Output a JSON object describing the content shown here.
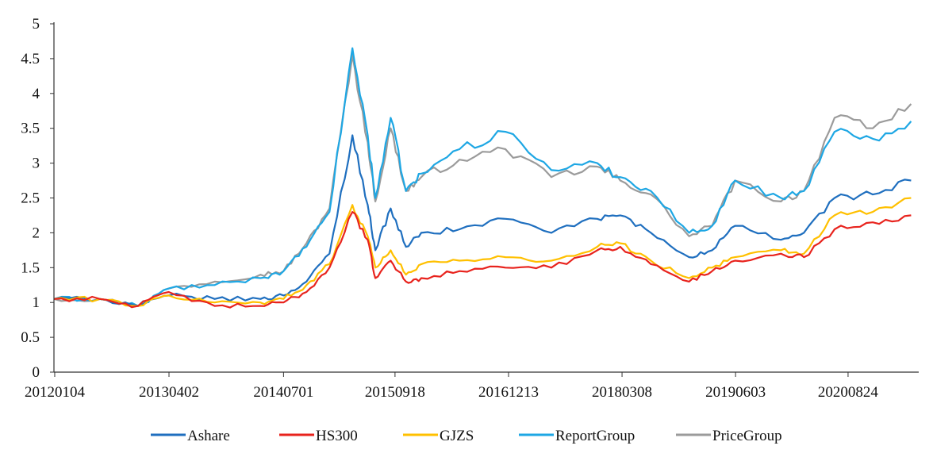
{
  "chart_data": {
    "type": "line",
    "title": "",
    "xlabel": "",
    "ylabel": "",
    "ylim": [
      0,
      5
    ],
    "yticks": [
      "0",
      "0.5",
      "1",
      "1.5",
      "2",
      "2.5",
      "3",
      "3.5",
      "4",
      "4.5",
      "5"
    ],
    "xticks": [
      "20120104",
      "20130402",
      "20140701",
      "20150918",
      "20161213",
      "20180308",
      "20190603",
      "20200824"
    ],
    "grid": false,
    "legend_position": "bottom",
    "x": [
      "2012-01",
      "2012-07",
      "2012-12",
      "2013-04",
      "2013-10",
      "2014-04",
      "2014-07",
      "2014-10",
      "2015-01",
      "2015-04",
      "2015-06",
      "2015-07",
      "2015-09",
      "2015-11",
      "2016-01",
      "2016-06",
      "2016-12",
      "2017-06",
      "2017-12",
      "2018-03",
      "2018-07",
      "2018-12",
      "2019-03",
      "2019-06",
      "2019-12",
      "2020-03",
      "2020-07",
      "2020-12",
      "2021-05"
    ],
    "series": [
      {
        "name": "Ashare",
        "color": "#1f6fbf",
        "values": [
          1.05,
          1.05,
          0.95,
          1.1,
          1.05,
          1.05,
          1.1,
          1.3,
          1.7,
          3.4,
          2.4,
          1.75,
          2.35,
          1.8,
          2.0,
          2.05,
          2.2,
          2.0,
          2.2,
          2.25,
          2.0,
          1.65,
          1.75,
          2.1,
          1.9,
          2.0,
          2.5,
          2.55,
          2.75
        ]
      },
      {
        "name": "HS300",
        "color": "#e8231d",
        "values": [
          1.05,
          1.05,
          0.95,
          1.15,
          0.95,
          0.95,
          1.0,
          1.15,
          1.5,
          2.3,
          1.9,
          1.35,
          1.6,
          1.3,
          1.35,
          1.45,
          1.5,
          1.5,
          1.75,
          1.8,
          1.55,
          1.3,
          1.45,
          1.6,
          1.7,
          1.65,
          2.05,
          2.15,
          2.25
        ]
      },
      {
        "name": "GJZS",
        "color": "#ffc000",
        "values": [
          1.05,
          1.05,
          0.95,
          1.1,
          1.0,
          1.0,
          1.05,
          1.25,
          1.55,
          2.4,
          1.95,
          1.5,
          1.75,
          1.4,
          1.55,
          1.6,
          1.65,
          1.6,
          1.8,
          1.85,
          1.6,
          1.35,
          1.5,
          1.65,
          1.75,
          1.7,
          2.25,
          2.3,
          2.5
        ]
      },
      {
        "name": "ReportGroup",
        "color": "#1ea7e4",
        "values": [
          1.05,
          1.05,
          0.95,
          1.2,
          1.25,
          1.35,
          1.45,
          1.8,
          2.3,
          4.65,
          3.4,
          2.5,
          3.65,
          2.6,
          2.85,
          3.2,
          3.45,
          2.9,
          3.0,
          2.8,
          2.6,
          2.0,
          2.1,
          2.75,
          2.5,
          2.6,
          3.45,
          3.35,
          3.6
        ]
      },
      {
        "name": "PriceGroup",
        "color": "#9b9b9b",
        "values": [
          1.05,
          1.05,
          0.95,
          1.2,
          1.3,
          1.4,
          1.45,
          1.85,
          2.35,
          4.55,
          3.3,
          2.45,
          3.5,
          2.6,
          2.8,
          3.05,
          3.2,
          2.8,
          2.95,
          2.75,
          2.55,
          1.95,
          2.1,
          2.75,
          2.45,
          2.6,
          3.65,
          3.5,
          3.85
        ]
      }
    ]
  }
}
